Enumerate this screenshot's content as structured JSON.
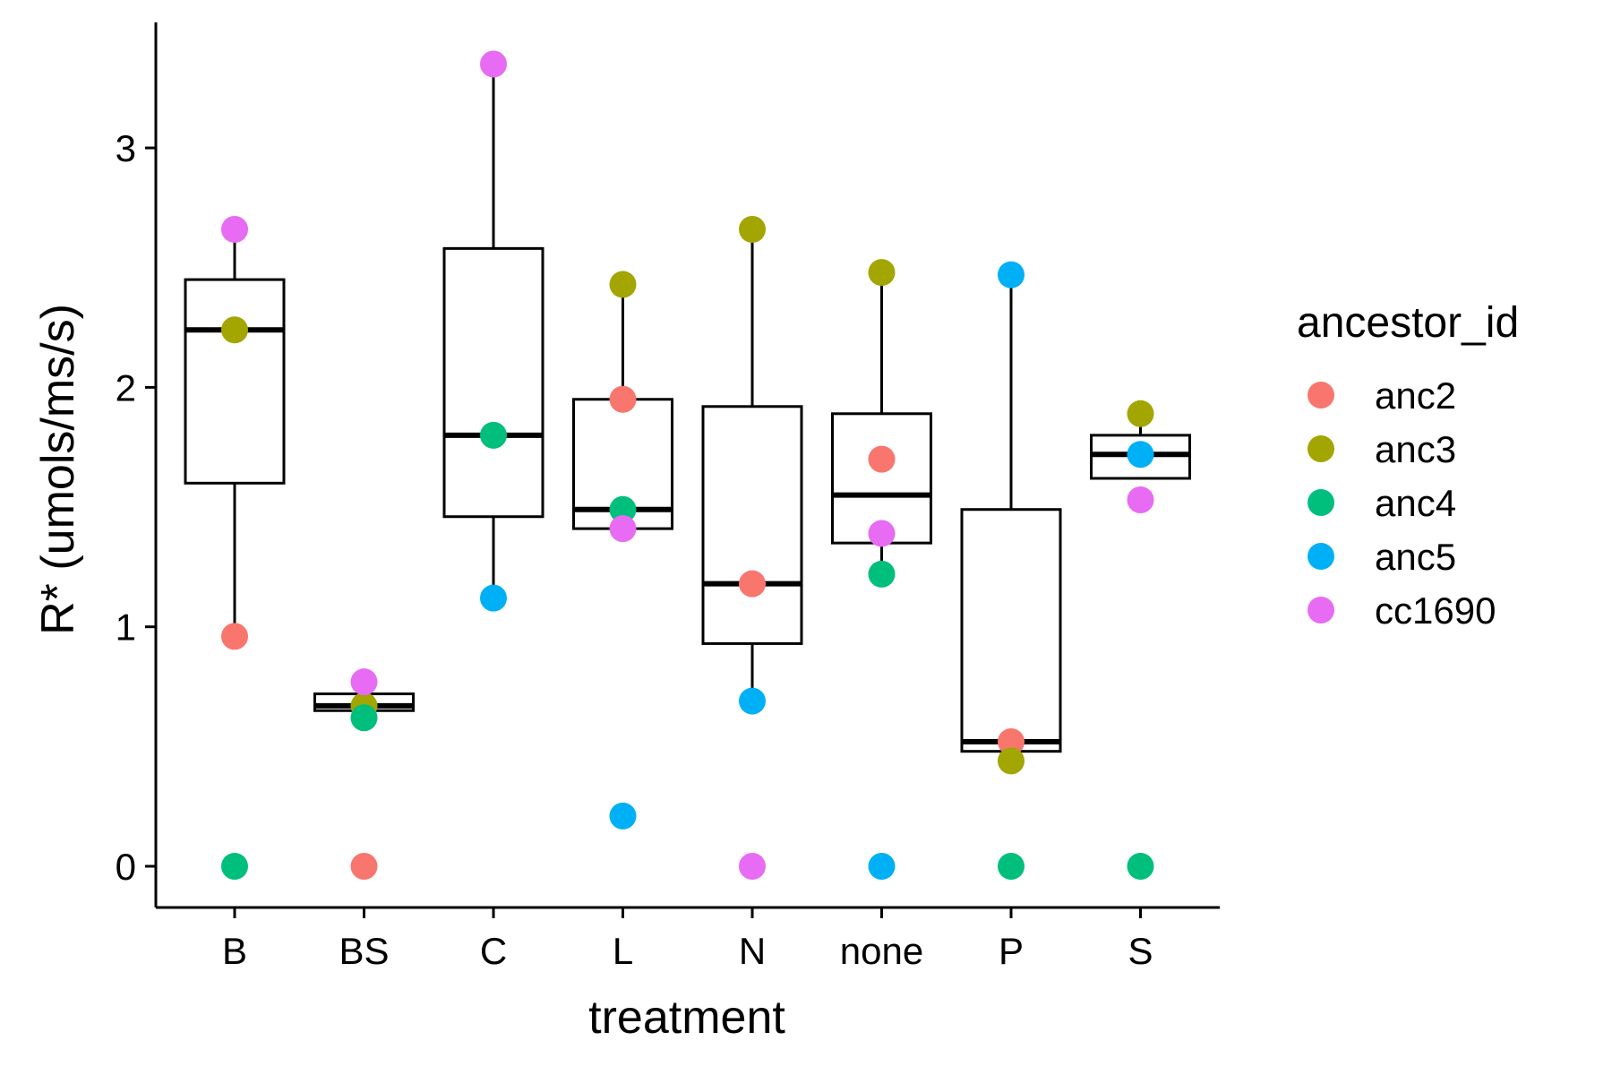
{
  "chart_data": {
    "type": "box",
    "xlabel": "treatment",
    "ylabel": "R* (umols/ms/s)",
    "categories": [
      "B",
      "BS",
      "C",
      "L",
      "N",
      "none",
      "P",
      "S"
    ],
    "yticks": [
      0,
      1,
      2,
      3
    ],
    "ylim": [
      -0.17,
      3.5
    ],
    "grid": false,
    "legend_placement": "right",
    "legend_title": "ancestor_id",
    "boxes": [
      {
        "category": "B",
        "q1": 1.6,
        "median": 2.24,
        "q3": 2.45,
        "lower": 0.96,
        "upper": 2.66
      },
      {
        "category": "BS",
        "q1": 0.65,
        "median": 0.67,
        "q3": 0.72,
        "lower": 0.62,
        "upper": 0.77
      },
      {
        "category": "C",
        "q1": 1.46,
        "median": 1.8,
        "q3": 2.58,
        "lower": 1.12,
        "upper": 3.35
      },
      {
        "category": "L",
        "q1": 1.41,
        "median": 1.49,
        "q3": 1.95,
        "lower": 1.41,
        "upper": 2.43
      },
      {
        "category": "N",
        "q1": 0.93,
        "median": 1.18,
        "q3": 1.92,
        "lower": 0.69,
        "upper": 2.66
      },
      {
        "category": "none",
        "q1": 1.35,
        "median": 1.55,
        "q3": 1.89,
        "lower": 1.22,
        "upper": 2.48
      },
      {
        "category": "P",
        "q1": 0.48,
        "median": 0.52,
        "q3": 1.49,
        "lower": 0.48,
        "upper": 2.47
      },
      {
        "category": "S",
        "q1": 1.62,
        "median": 1.72,
        "q3": 1.8,
        "lower": 1.62,
        "upper": 1.89
      }
    ],
    "series": [
      {
        "name": "anc2",
        "color": "#F8766D",
        "points": [
          [
            "B",
            0.96
          ],
          [
            "BS",
            0.0
          ],
          [
            "L",
            1.95
          ],
          [
            "N",
            1.18
          ],
          [
            "none",
            1.7
          ],
          [
            "P",
            0.52
          ]
        ]
      },
      {
        "name": "anc3",
        "color": "#A3A500",
        "points": [
          [
            "B",
            2.24
          ],
          [
            "BS",
            0.67
          ],
          [
            "L",
            2.43
          ],
          [
            "N",
            2.66
          ],
          [
            "none",
            2.48
          ],
          [
            "P",
            0.44
          ],
          [
            "S",
            1.89
          ]
        ]
      },
      {
        "name": "anc4",
        "color": "#00BF7D",
        "points": [
          [
            "B",
            0.0
          ],
          [
            "BS",
            0.62
          ],
          [
            "C",
            1.8
          ],
          [
            "L",
            1.49
          ],
          [
            "none",
            1.22
          ],
          [
            "P",
            0.0
          ],
          [
            "S",
            0.0
          ]
        ]
      },
      {
        "name": "anc5",
        "color": "#00B0F6",
        "points": [
          [
            "C",
            1.12
          ],
          [
            "L",
            0.21
          ],
          [
            "N",
            0.69
          ],
          [
            "none",
            0.0
          ],
          [
            "P",
            2.47
          ],
          [
            "S",
            1.72
          ]
        ]
      },
      {
        "name": "cc1690",
        "color": "#E76BF3",
        "points": [
          [
            "B",
            2.66
          ],
          [
            "BS",
            0.77
          ],
          [
            "C",
            3.35
          ],
          [
            "L",
            1.41
          ],
          [
            "N",
            0.0
          ],
          [
            "none",
            1.39
          ],
          [
            "S",
            1.53
          ]
        ]
      }
    ]
  }
}
